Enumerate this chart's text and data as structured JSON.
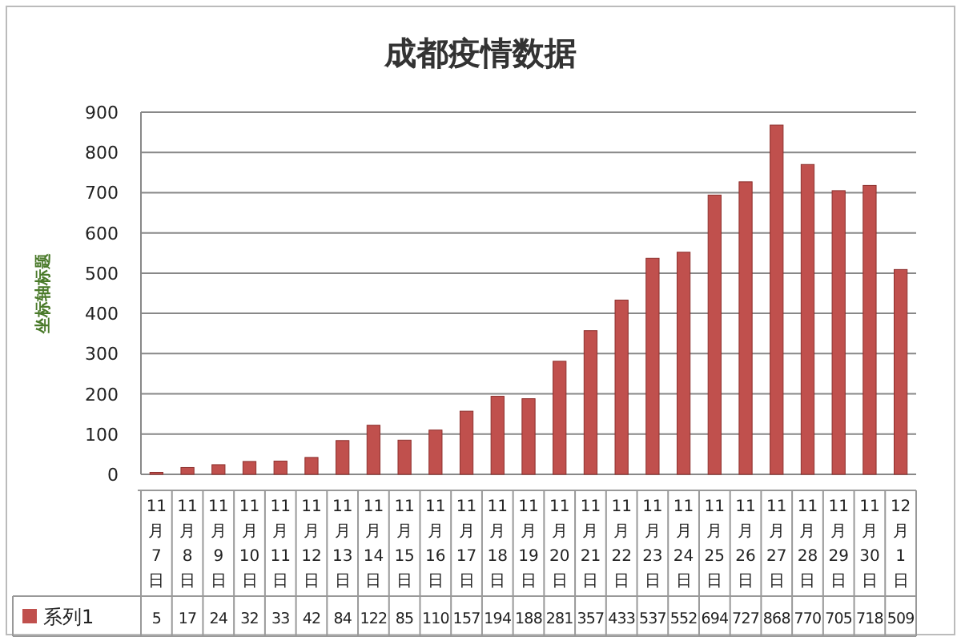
{
  "chart_data": {
    "type": "bar",
    "title": "成都疫情数据",
    "ylabel": "坐标轴标题",
    "categories": [
      "11月7日",
      "11月8日",
      "11月9日",
      "11月10日",
      "11月11日",
      "11月12日",
      "11月13日",
      "11月14日",
      "11月15日",
      "11月16日",
      "11月17日",
      "11月18日",
      "11月19日",
      "11月20日",
      "11月21日",
      "11月22日",
      "11月23日",
      "11月24日",
      "11月25日",
      "11月26日",
      "11月27日",
      "11月28日",
      "11月29日",
      "11月30日",
      "12月1日"
    ],
    "series": [
      {
        "name": "系列1",
        "color": "#c0504d",
        "values": [
          5,
          17,
          24,
          32,
          33,
          42,
          84,
          122,
          85,
          110,
          157,
          194,
          188,
          281,
          357,
          433,
          537,
          552,
          694,
          727,
          868,
          770,
          705,
          718,
          509
        ]
      }
    ],
    "ylim": [
      0,
      900
    ],
    "yticks": [
      0,
      100,
      200,
      300,
      400,
      500,
      600,
      700,
      800,
      900
    ],
    "grid": "y",
    "legend": "bottom",
    "data_labels": true
  }
}
